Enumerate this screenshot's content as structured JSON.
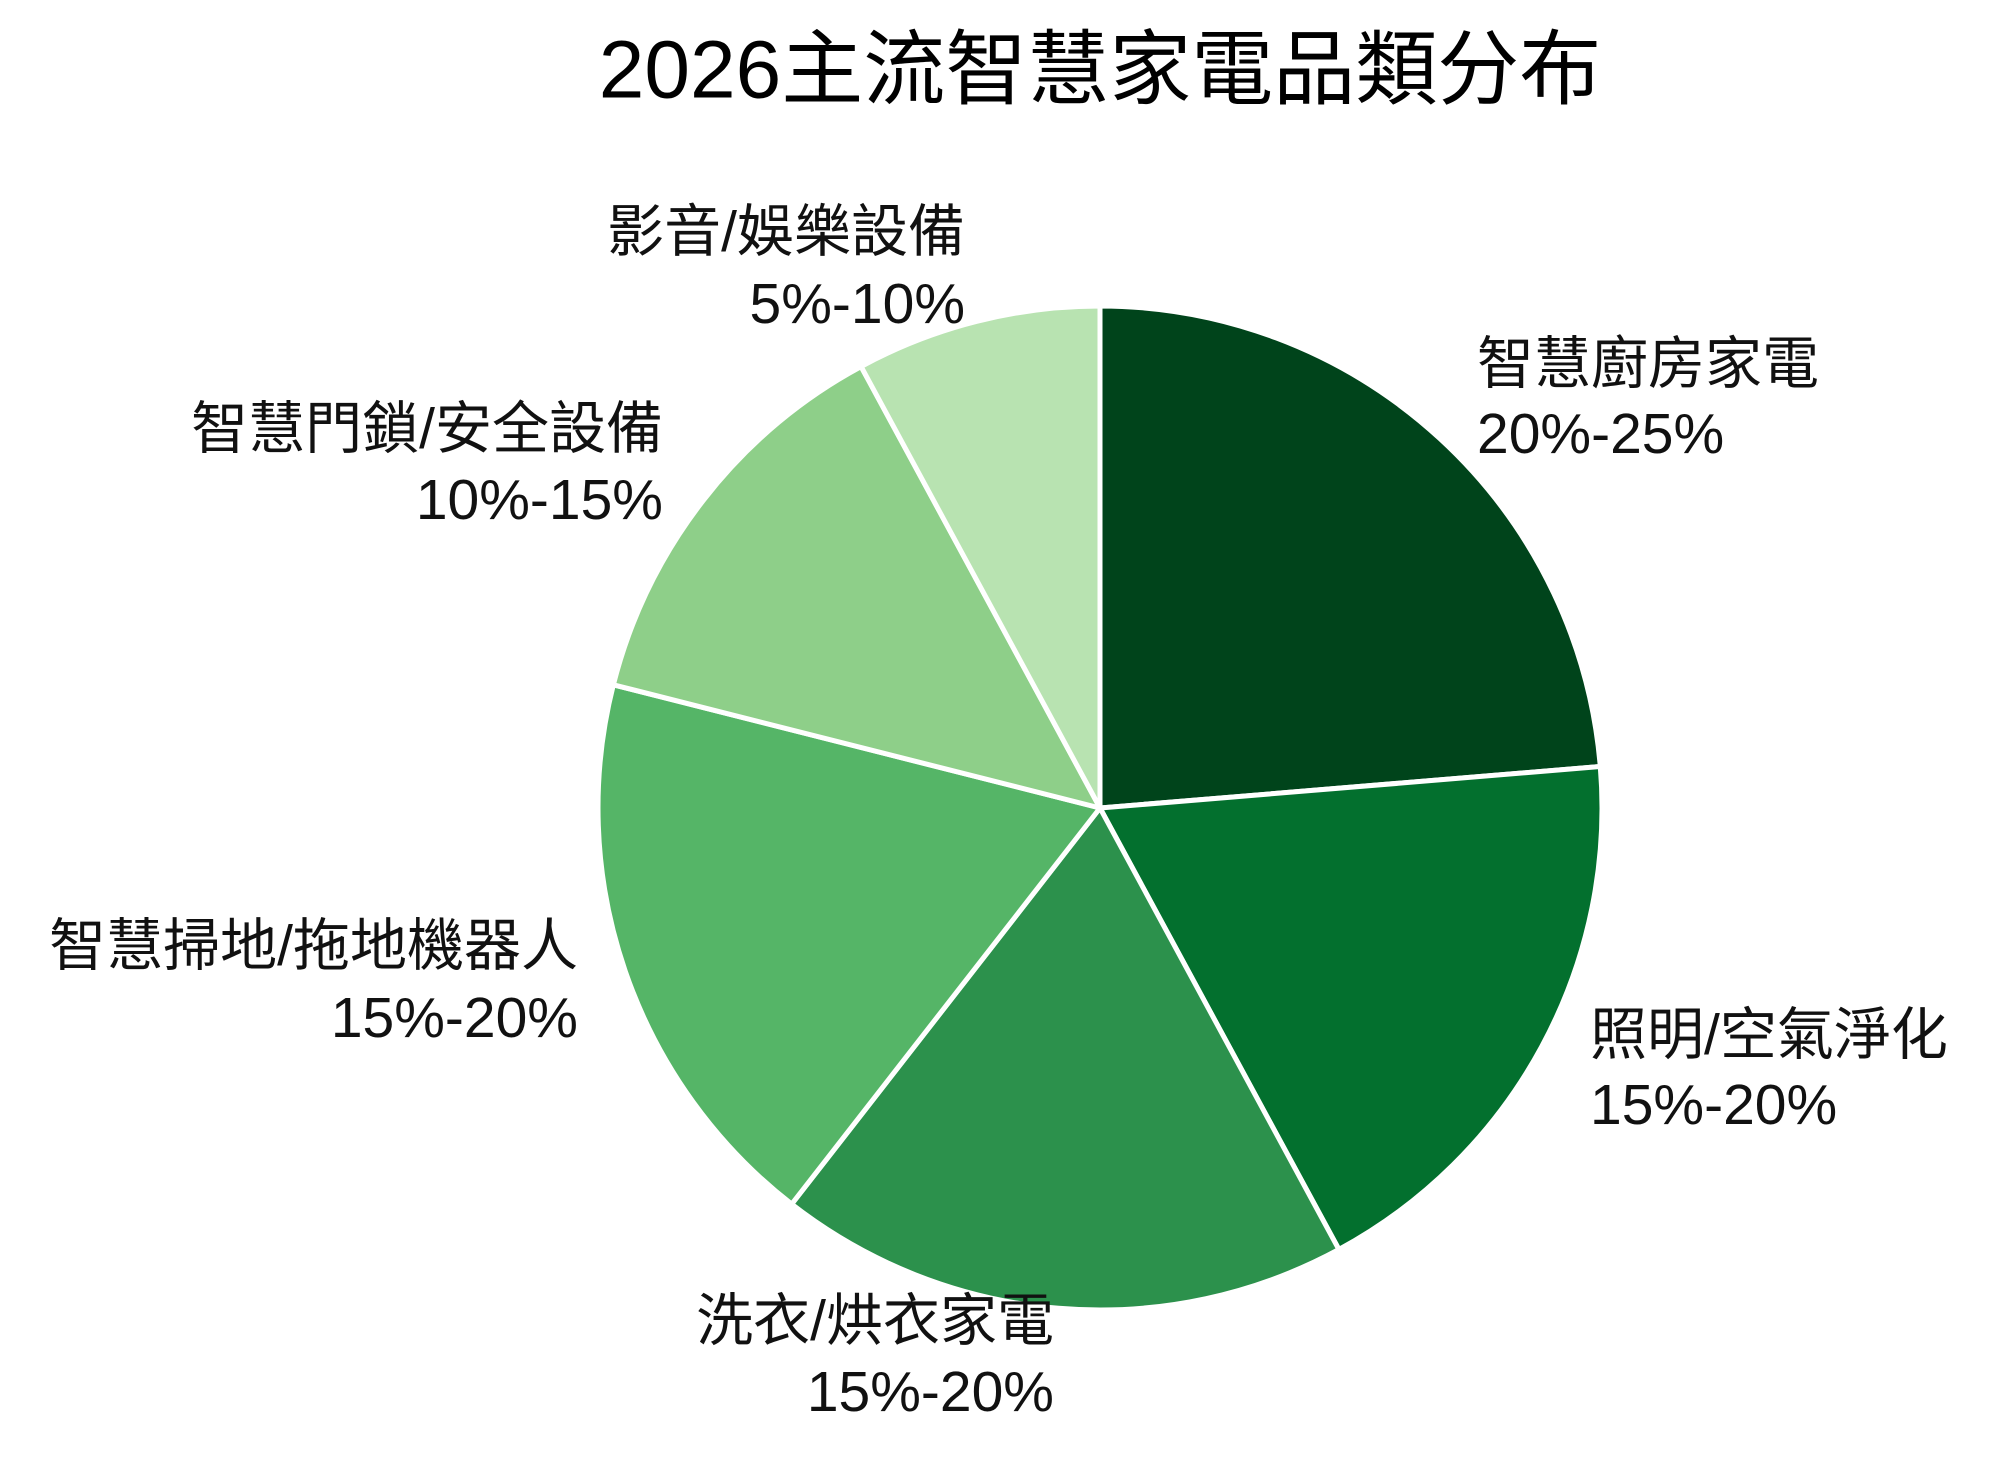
{
  "chart_data": {
    "type": "pie",
    "title": "2026主流智慧家電品類分布",
    "slices": [
      {
        "label": "智慧廚房家電",
        "range": "20%-25%",
        "value": 22.5,
        "color": "#00441b"
      },
      {
        "label": "照明/空氣淨化",
        "range": "15%-20%",
        "value": 17.5,
        "color": "#03702e"
      },
      {
        "label": "洗衣/烘衣家電",
        "range": "15%-20%",
        "value": 17.5,
        "color": "#2c914c"
      },
      {
        "label": "智慧掃地/拖地機器人",
        "range": "15%-20%",
        "value": 17.5,
        "color": "#55b567"
      },
      {
        "label": "智慧門鎖/安全設備",
        "range": "10%-15%",
        "value": 12.5,
        "color": "#8ecf89"
      },
      {
        "label": "影音/娛樂設備",
        "range": "5%-10%",
        "value": 7.5,
        "color": "#b8e3b1"
      }
    ]
  }
}
